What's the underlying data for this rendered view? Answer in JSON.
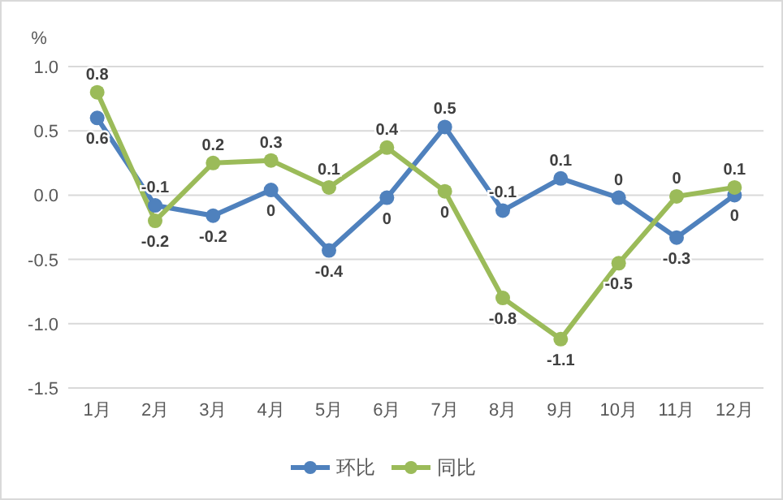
{
  "chart_data": {
    "type": "line",
    "ylabel": "%",
    "categories": [
      "1月",
      "2月",
      "3月",
      "4月",
      "5月",
      "6月",
      "7月",
      "8月",
      "9月",
      "10月",
      "11月",
      "12月"
    ],
    "series": [
      {
        "name": "环比",
        "color": "#4f81bd",
        "values": [
          0.6,
          -0.08,
          -0.16,
          0.04,
          -0.43,
          -0.02,
          0.53,
          -0.12,
          0.13,
          -0.02,
          -0.33,
          0.0
        ],
        "value_labels": [
          "0.6",
          "-0.1",
          "-0.2",
          "0",
          "-0.4",
          "0",
          "0.5",
          "-0.1",
          "0.1",
          "0",
          "-0.3",
          "0"
        ]
      },
      {
        "name": "同比",
        "color": "#9bbb59",
        "values": [
          0.8,
          -0.2,
          0.25,
          0.27,
          0.06,
          0.37,
          0.03,
          -0.8,
          -1.12,
          -0.53,
          -0.01,
          0.06
        ],
        "value_labels": [
          "0.8",
          "-0.2",
          "0.2",
          "0.3",
          "0.1",
          "0.4",
          "0",
          "-0.8",
          "-1.1",
          "-0.5",
          "0",
          "0.1"
        ]
      }
    ],
    "ylim": [
      -1.5,
      1.0
    ],
    "yticks": [
      {
        "value": -1.5,
        "label": "-1.5"
      },
      {
        "value": -1.0,
        "label": "-1.0"
      },
      {
        "value": -0.5,
        "label": "-0.5"
      },
      {
        "value": 0,
        "label": "0.0"
      },
      {
        "value": 0.5,
        "label": "0.5"
      },
      {
        "value": 1.0,
        "label": "1.0"
      }
    ],
    "grid": "y",
    "legend": "bottom",
    "marker": "circle",
    "line_style": "solid"
  }
}
